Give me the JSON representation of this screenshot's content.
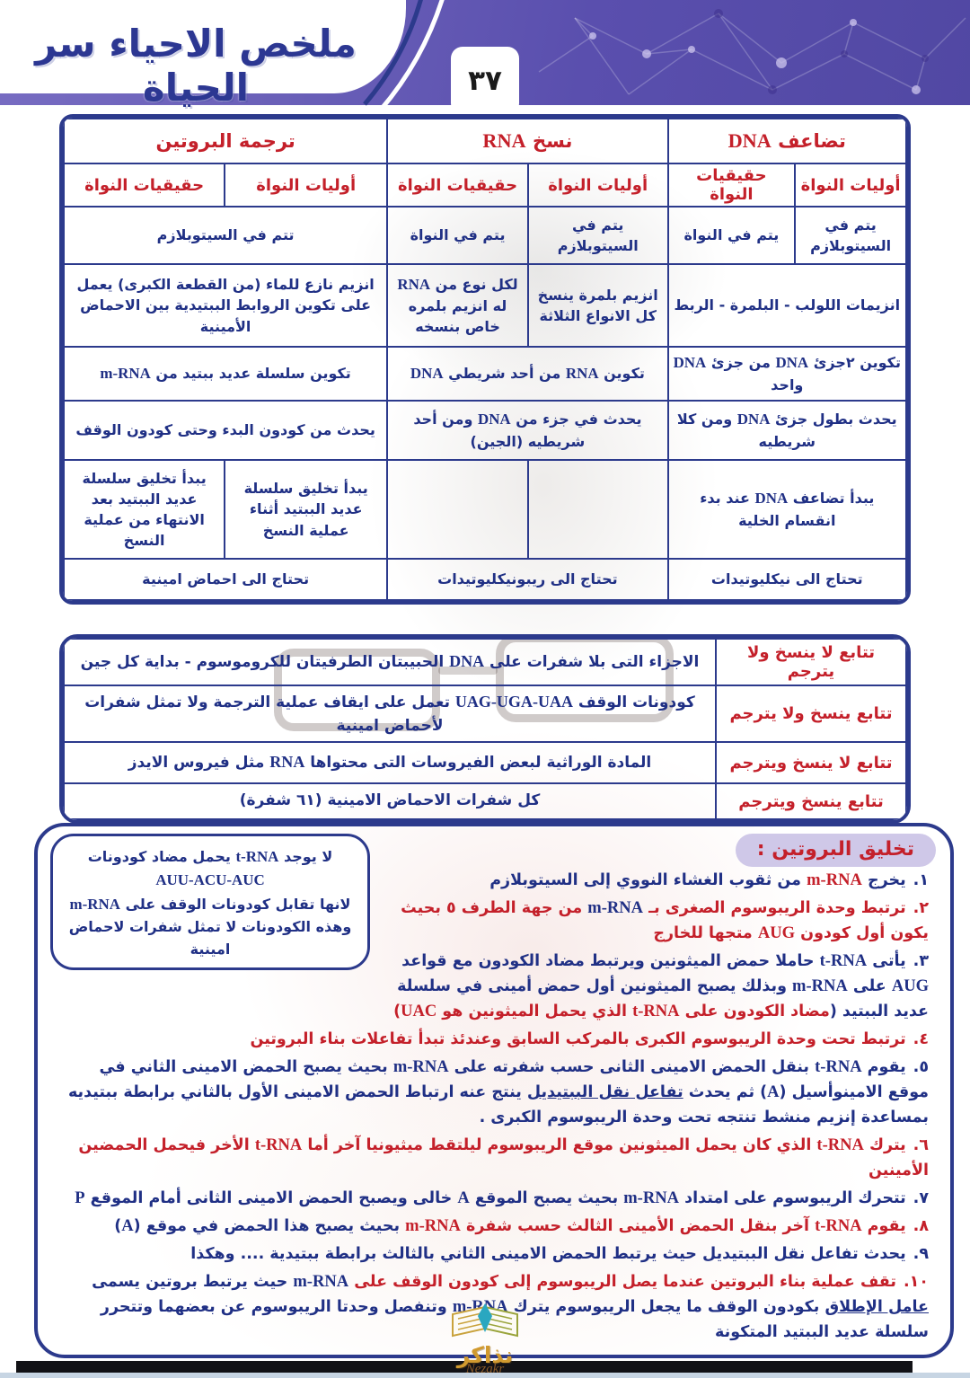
{
  "header": {
    "title": "ملخص الاحياء سر الحياة",
    "page_number": "٣٧"
  },
  "colors": {
    "red": "#c4202a",
    "navy": "#203085",
    "border": "#2c3a8c",
    "band_purple": "#5a4fae",
    "pill_lavender": "#cfc8e8"
  },
  "comparison_table": {
    "groups": [
      {
        "title": "تضاعف DNA"
      },
      {
        "title": "نسخ RNA"
      },
      {
        "title": "ترجمة البروتين"
      }
    ],
    "subheaders": [
      "أوليات النواة",
      "حقيقيات النواة",
      "أوليات النواة",
      "حقيقيات النواة",
      "أوليات النواة",
      "حقيقيات النواة"
    ],
    "rows": [
      [
        {
          "text": "يتم في السيتوبلازم",
          "span": 1
        },
        {
          "text": "يتم في النواة",
          "span": 1
        },
        {
          "text": "يتم في السيتوبلازم",
          "span": 1
        },
        {
          "text": "يتم في النواة",
          "span": 1
        },
        {
          "text": "تتم في السيتوبلازم",
          "span": 2
        }
      ],
      [
        {
          "text": "انزيمات اللولب - البلمرة - الربط",
          "span": 2
        },
        {
          "text": "انزيم بلمرة ينسخ كل الانواع الثلاثة",
          "span": 1
        },
        {
          "text": "لكل نوع من RNA له انزيم بلمره خاص بنسخه",
          "span": 1
        },
        {
          "text": "انزيم نازع للماء (من القطعة الكبرى) يعمل على تكوين الروابط الببتيدية بين الاحماض الأمينية",
          "span": 2
        }
      ],
      [
        {
          "text": "تكوين ٢جزئ DNA من جزئ DNA واحد",
          "span": 2
        },
        {
          "text": "تكوين RNA من أحد شريطي DNA",
          "span": 2
        },
        {
          "text": "تكوين سلسلة عديد ببتيد من m-RNA",
          "span": 2
        }
      ],
      [
        {
          "text": "يحدث بطول جزئ DNA ومن كلا شريطيه",
          "span": 2
        },
        {
          "text": "يحدث في جزء من DNA ومن أحد شريطيه (الجين)",
          "span": 2
        },
        {
          "text": "يحدث من كودون البدء وحتى كودون الوقف",
          "span": 2
        }
      ],
      [
        {
          "text": "يبدأ تضاعف DNA عند بدء انقسام الخلية",
          "span": 2
        },
        {
          "text": "",
          "span": 1
        },
        {
          "text": "",
          "span": 1
        },
        {
          "text": "يبدأ تخليق سلسلة عديد الببتيد أثناء عملية النسخ",
          "span": 1
        },
        {
          "text": "يبدأ تخليق سلسلة عديد الببتيد بعد الانتهاء من عملية النسخ",
          "span": 1
        }
      ],
      [
        {
          "text": "تحتاج الى نيكليوتيدات",
          "span": 2
        },
        {
          "text": "تحتاج الى ريبونيكليوتيدات",
          "span": 2
        },
        {
          "text": "تحتاج الى احماض امينية",
          "span": 2
        }
      ]
    ]
  },
  "sequence_table": {
    "rows": [
      {
        "label": "تتابع لا ينسخ ولا يترجم",
        "content": "الاجزاء التى بلا شفرات على DNA الحبيبتان الطرفيتان للكروموسوم - بداية كل جين"
      },
      {
        "label": "تتابع ينسخ ولا يترجم",
        "content": "كودونات الوقف UAG-UGA-UAA تعمل على ايقاف عملية الترجمة ولا تمثل شفرات لأحماض امينية"
      },
      {
        "label": "تتابع لا ينسخ ويترجم",
        "content": "المادة الوراثية لبعض الفيروسات التى محتواها RNA مثل فيروس الايدز"
      },
      {
        "label": "تتابع ينسخ ويترجم",
        "content": "كل شفرات الاحماض الامينية (٦١ شفرة)"
      }
    ]
  },
  "protein_section": {
    "title": "تخليق البروتين :",
    "side_note": {
      "lines": [
        "لا يوجد t-RNA يحمل مضاد كودونات",
        "AUU-ACU-AUC",
        "لانها تقابل كودونات الوقف على m-RNA وهذه الكودونات لا تمثل شفرات لاحماض امينية"
      ]
    },
    "steps": [
      {
        "num": "١.",
        "segments": [
          {
            "t": "يخرج ",
            "c": "blue"
          },
          {
            "t": "m-RNA",
            "c": "red"
          },
          {
            "t": " من ثقوب الغشاء النووي إلى السيتوبلازم",
            "c": "blue"
          }
        ]
      },
      {
        "num": "٢.",
        "segments": [
          {
            "t": "ترتبط وحدة الريبوسوم الصغرى بـ ",
            "c": "red"
          },
          {
            "t": "m-RNA",
            "c": "blue"
          },
          {
            "t": " من جهة الطرف ٥ بحيث يكون أول كودون AUG متجها للخارج",
            "c": "red"
          }
        ]
      },
      {
        "num": "٣.",
        "segments": [
          {
            "t": "يأتى t-RNA حاملا حمض الميثونين ويرتبط مضاد الكودون مع قواعد AUG على m-RNA وبذلك يصبح الميثونين أول حمض أمينى في سلسلة عديد الببتيد (",
            "c": "blue"
          },
          {
            "t": "مضاد الكودون على t-RNA الذي يحمل الميثونين هو UAC)",
            "c": "red"
          }
        ]
      },
      {
        "num": "٤.",
        "segments": [
          {
            "t": "ترتبط تحت وحدة الريبوسوم الكبرى بالمركب السابق وعندئذ تبدأ تفاعلات بناء البروتين",
            "c": "red"
          }
        ]
      },
      {
        "num": "٥.",
        "segments": [
          {
            "t": "يقوم t-RNA بنقل الحمض الامينى الثانى حسب شفرته على m-RNA بحيث يصبح الحمض الامينى الثاني في موقع الامينوأسيل (A) ثم يحدث ",
            "c": "blue"
          },
          {
            "t": "تفاعل نقل الببتيديل",
            "c": "blue",
            "u": true
          },
          {
            "t": " ينتج عنه ارتباط الحمض الامينى الأول بالثاني برابطة ببتيديه بمساعدة إنزيم منشط تنتجه تحت وحدة الريبوسوم الكبرى .",
            "c": "blue"
          }
        ]
      },
      {
        "num": "٦.",
        "segments": [
          {
            "t": "يترك t-RNA الذي كان يحمل الميثونين موقع الريبوسوم ليلتقط ميثيونيا آخر أما t-RNA الأخر فيحمل الحمضين الأمينين",
            "c": "red"
          }
        ]
      },
      {
        "num": "٧.",
        "segments": [
          {
            "t": "تتحرك الريبوسوم على امتداد m-RNA بحيث يصبح الموقع A خالى ويصبح الحمض الامينى الثانى أمام الموقع P",
            "c": "blue"
          }
        ]
      },
      {
        "num": "٨.",
        "segments": [
          {
            "t": "يقوم t-RNA آخر بنقل الحمض الأمينى الثالث حسب شفرة m-RNA ",
            "c": "red"
          },
          {
            "t": "بحيث يصبح هذا الحمض في موقع (A)",
            "c": "blue"
          }
        ]
      },
      {
        "num": "٩.",
        "segments": [
          {
            "t": "يحدث تفاعل نقل الببتيديل حيث يرتبط الحمض الامينى الثاني بالثالث برابطة ببتيدية .... وهكذا",
            "c": "blue"
          }
        ]
      },
      {
        "num": "١٠.",
        "segments": [
          {
            "t": "تقف عملية بناء البروتين عندما يصل الريبوسوم إلى كودون الوقف على ",
            "c": "red"
          },
          {
            "t": "m-RNA",
            "c": "blue"
          },
          {
            "t": " حيث يرتبط بروتين يسمى ",
            "c": "blue"
          },
          {
            "t": "عامل الإطلاق",
            "c": "blue",
            "u": true
          },
          {
            "t": " بكودون الوقف ما يجعل الريبوسوم يترك m-RNA وتنفصل وحدتا الريبوسوم عن بعضهما وتتحرر سلسلة عديد الببتيد المتكونة",
            "c": "blue"
          }
        ]
      }
    ]
  },
  "footer": {
    "logo_arabic": "نذاكر",
    "logo_latin": "Nezakr"
  }
}
